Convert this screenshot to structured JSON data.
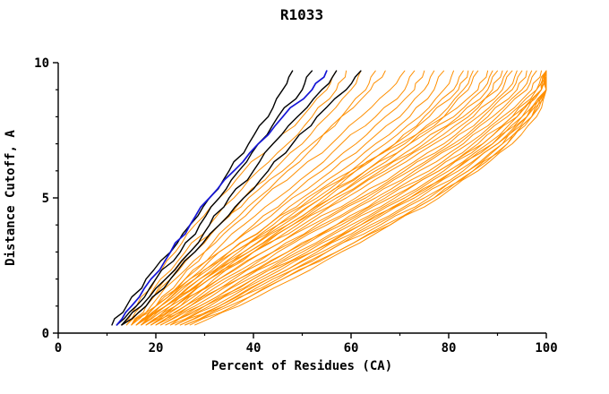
{
  "page": {
    "background": "#ffffff"
  },
  "chart_data": {
    "type": "line",
    "title": "R1033",
    "xlabel": "Percent of Residues (CA)",
    "ylabel": "Distance Cutoff, A",
    "xlim": [
      0,
      100
    ],
    "ylim": [
      0,
      10
    ],
    "x_ticks": [
      0,
      20,
      40,
      60,
      80,
      100
    ],
    "y_ticks": [
      0,
      5,
      10
    ],
    "x_minor_ticks": [
      10,
      30,
      50,
      70,
      90
    ],
    "y_minor_ticks": [
      1,
      2,
      3,
      4,
      6,
      7,
      8,
      9
    ],
    "grid": false,
    "legend": "none",
    "colors": {
      "orange": "#ff8f00",
      "black": "#000000",
      "blue": "#1515d6"
    },
    "y_points": [
      0.3,
      1,
      2,
      3,
      4,
      5,
      6,
      7,
      8,
      9,
      9.7
    ],
    "series": [
      {
        "color": "orange",
        "xs": [
          13,
          16,
          20,
          24,
          28,
          33,
          38,
          44,
          50,
          55,
          57
        ]
      },
      {
        "color": "orange",
        "xs": [
          14,
          17,
          21,
          26,
          31,
          36,
          41,
          47,
          52,
          57,
          59
        ]
      },
      {
        "color": "orange",
        "xs": [
          15,
          18,
          23,
          28,
          33,
          38,
          44,
          50,
          55,
          60,
          62
        ]
      },
      {
        "color": "orange",
        "xs": [
          16,
          20,
          25,
          30,
          35,
          41,
          47,
          53,
          58,
          63,
          65
        ]
      },
      {
        "color": "orange",
        "xs": [
          14,
          18,
          22,
          27,
          33,
          39,
          46,
          52,
          58,
          64,
          67
        ]
      },
      {
        "color": "orange",
        "xs": [
          15,
          19,
          24,
          30,
          36,
          42,
          49,
          56,
          62,
          68,
          71
        ]
      },
      {
        "color": "orange",
        "xs": [
          16,
          20,
          26,
          32,
          38,
          45,
          52,
          58,
          65,
          71,
          73
        ]
      },
      {
        "color": "orange",
        "xs": [
          17,
          21,
          27,
          33,
          40,
          47,
          54,
          61,
          67,
          73,
          75
        ]
      },
      {
        "color": "orange",
        "xs": [
          15,
          20,
          26,
          33,
          41,
          48,
          56,
          63,
          70,
          75,
          77
        ]
      },
      {
        "color": "orange",
        "xs": [
          16,
          21,
          28,
          35,
          43,
          50,
          58,
          65,
          72,
          77,
          79
        ]
      },
      {
        "color": "orange",
        "xs": [
          17,
          22,
          29,
          36,
          44,
          52,
          60,
          67,
          74,
          79,
          81
        ]
      },
      {
        "color": "orange",
        "xs": [
          18,
          23,
          30,
          38,
          46,
          54,
          61,
          69,
          75,
          81,
          83
        ]
      },
      {
        "color": "orange",
        "xs": [
          16,
          22,
          29,
          37,
          45,
          53,
          61,
          69,
          76,
          82,
          84
        ]
      },
      {
        "color": "orange",
        "xs": [
          18,
          24,
          31,
          39,
          47,
          55,
          63,
          71,
          78,
          83,
          85
        ]
      },
      {
        "color": "orange",
        "xs": [
          19,
          25,
          32,
          40,
          48,
          56,
          64,
          72,
          79,
          84,
          86
        ]
      },
      {
        "color": "orange",
        "xs": [
          15,
          20,
          27,
          35,
          43,
          51,
          60,
          70,
          79,
          86,
          88
        ]
      },
      {
        "color": "orange",
        "xs": [
          16,
          21,
          28,
          36,
          45,
          54,
          63,
          72,
          81,
          87,
          89
        ]
      },
      {
        "color": "orange",
        "xs": [
          17,
          22,
          30,
          38,
          47,
          56,
          65,
          74,
          82,
          88,
          90
        ]
      },
      {
        "color": "orange",
        "xs": [
          18,
          24,
          31,
          40,
          49,
          58,
          67,
          76,
          84,
          89,
          91
        ]
      },
      {
        "color": "orange",
        "xs": [
          16,
          22,
          30,
          39,
          48,
          57,
          66,
          75,
          83,
          90,
          92
        ]
      },
      {
        "color": "orange",
        "xs": [
          17,
          23,
          31,
          40,
          50,
          59,
          68,
          77,
          85,
          91,
          93
        ]
      },
      {
        "color": "orange",
        "xs": [
          19,
          25,
          33,
          42,
          51,
          61,
          70,
          79,
          86,
          92,
          94
        ]
      },
      {
        "color": "orange",
        "xs": [
          18,
          24,
          33,
          42,
          52,
          62,
          71,
          80,
          87,
          93,
          95
        ]
      },
      {
        "color": "orange",
        "xs": [
          20,
          26,
          35,
          44,
          53,
          63,
          72,
          81,
          88,
          94,
          96
        ]
      },
      {
        "color": "orange",
        "xs": [
          19,
          26,
          34,
          44,
          54,
          64,
          73,
          82,
          89,
          95,
          97
        ]
      },
      {
        "color": "orange",
        "xs": [
          20,
          27,
          36,
          45,
          55,
          65,
          74,
          83,
          90,
          96,
          98
        ]
      },
      {
        "color": "orange",
        "xs": [
          21,
          28,
          37,
          47,
          57,
          66,
          76,
          84,
          91,
          97,
          99
        ]
      },
      {
        "color": "orange",
        "xs": [
          20,
          27,
          37,
          47,
          57,
          67,
          77,
          85,
          92,
          98,
          100
        ]
      },
      {
        "color": "orange",
        "xs": [
          22,
          29,
          38,
          48,
          58,
          68,
          78,
          86,
          93,
          98,
          100
        ]
      },
      {
        "color": "orange",
        "xs": [
          21,
          29,
          39,
          49,
          59,
          69,
          78,
          87,
          93,
          99,
          100
        ]
      },
      {
        "color": "orange",
        "xs": [
          23,
          30,
          40,
          50,
          60,
          70,
          79,
          87,
          94,
          99,
          100
        ]
      },
      {
        "color": "orange",
        "xs": [
          22,
          30,
          40,
          51,
          61,
          71,
          80,
          88,
          94,
          99,
          100
        ]
      },
      {
        "color": "orange",
        "xs": [
          24,
          32,
          42,
          52,
          62,
          72,
          81,
          89,
          95,
          100,
          100
        ]
      },
      {
        "color": "orange",
        "xs": [
          23,
          31,
          41,
          52,
          62,
          72,
          81,
          89,
          95,
          99,
          100
        ]
      },
      {
        "color": "orange",
        "xs": [
          25,
          33,
          43,
          53,
          63,
          73,
          82,
          90,
          96,
          100,
          100
        ]
      },
      {
        "color": "orange",
        "xs": [
          24,
          33,
          43,
          54,
          64,
          74,
          83,
          90,
          96,
          100,
          100
        ]
      },
      {
        "color": "orange",
        "xs": [
          26,
          34,
          45,
          55,
          65,
          75,
          84,
          91,
          96,
          100,
          100
        ]
      },
      {
        "color": "orange",
        "xs": [
          25,
          34,
          44,
          55,
          66,
          76,
          84,
          91,
          97,
          100,
          100
        ]
      },
      {
        "color": "orange",
        "xs": [
          27,
          36,
          46,
          57,
          67,
          77,
          85,
          92,
          97,
          100,
          100
        ]
      },
      {
        "color": "orange",
        "xs": [
          26,
          35,
          46,
          57,
          68,
          77,
          85,
          92,
          97,
          100,
          100
        ]
      },
      {
        "color": "orange",
        "xs": [
          28,
          37,
          48,
          58,
          68,
          78,
          86,
          93,
          98,
          100,
          100
        ]
      },
      {
        "color": "black",
        "xs": [
          11,
          14,
          18,
          23,
          27,
          31,
          35,
          39,
          43,
          46,
          48
        ]
      },
      {
        "color": "black",
        "xs": [
          12,
          16,
          20,
          25,
          29,
          33,
          37,
          41,
          45,
          50,
          52
        ]
      },
      {
        "color": "black",
        "xs": [
          13,
          17,
          22,
          27,
          31,
          35,
          40,
          44,
          49,
          54,
          57
        ]
      },
      {
        "color": "black",
        "xs": [
          13,
          18,
          23,
          28,
          33,
          38,
          43,
          48,
          53,
          59,
          62
        ]
      },
      {
        "color": "blue",
        "xs": [
          12,
          15,
          19,
          23,
          27,
          31,
          36,
          41,
          46,
          52,
          55
        ]
      }
    ]
  }
}
